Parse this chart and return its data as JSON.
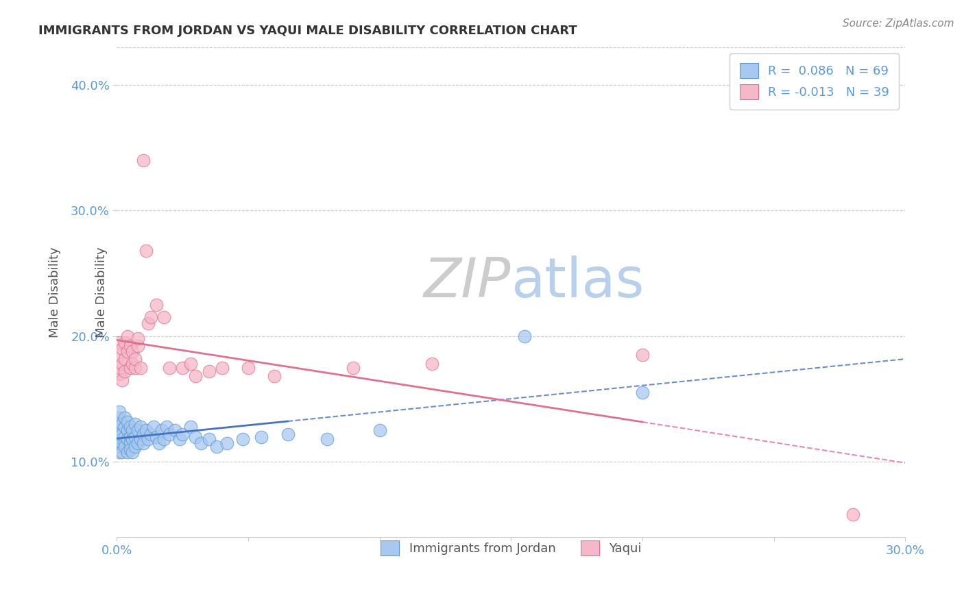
{
  "title": "IMMIGRANTS FROM JORDAN VS YAQUI MALE DISABILITY CORRELATION CHART",
  "source": "Source: ZipAtlas.com",
  "ylabel_label": "Male Disability",
  "legend_label1": "Immigrants from Jordan",
  "legend_label2": "Yaqui",
  "R1": 0.086,
  "N1": 69,
  "R2": -0.013,
  "N2": 39,
  "xlim": [
    0.0,
    0.3
  ],
  "ylim": [
    0.04,
    0.43
  ],
  "xticks": [
    0.0,
    0.05,
    0.1,
    0.15,
    0.2,
    0.25,
    0.3
  ],
  "xticklabels": [
    "0.0%",
    "",
    "",
    "",
    "",
    "",
    "30.0%"
  ],
  "yticks": [
    0.1,
    0.2,
    0.3,
    0.4
  ],
  "yticklabels": [
    "10.0%",
    "20.0%",
    "30.0%",
    "40.0%"
  ],
  "watermark_zip": "ZIP",
  "watermark_atlas": "atlas",
  "color_blue": "#A8C8F0",
  "color_pink": "#F4B8C8",
  "edge_blue": "#5B9BD5",
  "edge_pink": "#E07090",
  "line_blue": "#4472C4",
  "line_pink": "#E07090",
  "background": "#FFFFFF",
  "grid_color": "#CCCCCC",
  "blue_x": [
    0.001,
    0.001,
    0.001,
    0.001,
    0.001,
    0.001,
    0.001,
    0.001,
    0.001,
    0.001,
    0.001,
    0.001,
    0.002,
    0.002,
    0.002,
    0.002,
    0.002,
    0.002,
    0.003,
    0.003,
    0.003,
    0.003,
    0.003,
    0.004,
    0.004,
    0.004,
    0.004,
    0.005,
    0.005,
    0.005,
    0.005,
    0.006,
    0.006,
    0.006,
    0.007,
    0.007,
    0.007,
    0.008,
    0.008,
    0.009,
    0.009,
    0.01,
    0.01,
    0.011,
    0.012,
    0.013,
    0.014,
    0.015,
    0.016,
    0.017,
    0.018,
    0.019,
    0.02,
    0.022,
    0.024,
    0.025,
    0.028,
    0.03,
    0.032,
    0.035,
    0.038,
    0.042,
    0.048,
    0.055,
    0.065,
    0.08,
    0.1,
    0.155,
    0.2
  ],
  "blue_y": [
    0.125,
    0.128,
    0.13,
    0.132,
    0.118,
    0.122,
    0.115,
    0.12,
    0.108,
    0.135,
    0.112,
    0.14,
    0.125,
    0.118,
    0.13,
    0.115,
    0.108,
    0.122,
    0.12,
    0.128,
    0.115,
    0.135,
    0.112,
    0.125,
    0.118,
    0.108,
    0.132,
    0.12,
    0.128,
    0.115,
    0.11,
    0.125,
    0.118,
    0.108,
    0.13,
    0.12,
    0.112,
    0.125,
    0.115,
    0.128,
    0.118,
    0.122,
    0.115,
    0.125,
    0.118,
    0.122,
    0.128,
    0.12,
    0.115,
    0.125,
    0.118,
    0.128,
    0.122,
    0.125,
    0.118,
    0.122,
    0.128,
    0.12,
    0.115,
    0.118,
    0.112,
    0.115,
    0.118,
    0.12,
    0.122,
    0.118,
    0.125,
    0.2,
    0.155
  ],
  "pink_x": [
    0.001,
    0.001,
    0.001,
    0.001,
    0.002,
    0.002,
    0.002,
    0.003,
    0.003,
    0.003,
    0.004,
    0.004,
    0.005,
    0.005,
    0.006,
    0.006,
    0.007,
    0.007,
    0.008,
    0.008,
    0.009,
    0.01,
    0.011,
    0.012,
    0.013,
    0.015,
    0.018,
    0.02,
    0.025,
    0.028,
    0.03,
    0.035,
    0.04,
    0.05,
    0.06,
    0.09,
    0.12,
    0.2,
    0.28
  ],
  "pink_y": [
    0.17,
    0.175,
    0.185,
    0.195,
    0.165,
    0.178,
    0.19,
    0.172,
    0.182,
    0.195,
    0.188,
    0.2,
    0.175,
    0.192,
    0.178,
    0.188,
    0.175,
    0.182,
    0.192,
    0.198,
    0.175,
    0.34,
    0.268,
    0.21,
    0.215,
    0.225,
    0.215,
    0.175,
    0.175,
    0.178,
    0.168,
    0.172,
    0.175,
    0.175,
    0.168,
    0.175,
    0.178,
    0.185,
    0.058
  ]
}
